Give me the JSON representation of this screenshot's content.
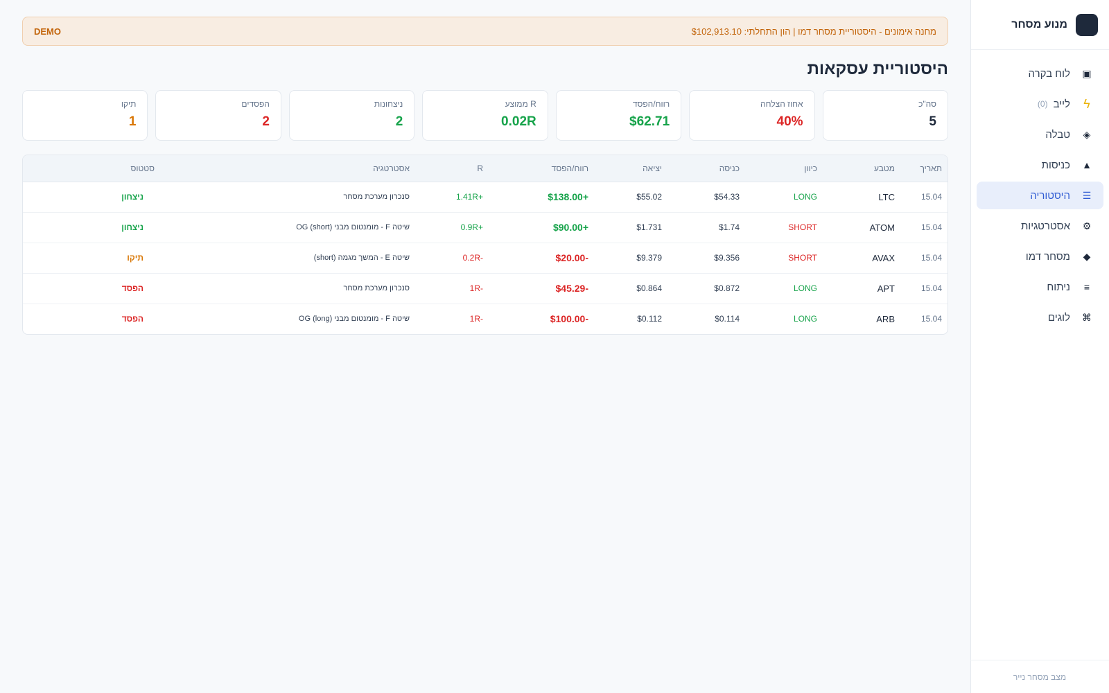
{
  "sidebar": {
    "brand": "מנוע מסחר",
    "items": [
      {
        "label": "לוח בקרה",
        "icon": "▣",
        "icon_name": "dashboard-icon"
      },
      {
        "label": "לייב",
        "icon": "ϟ",
        "icon_name": "lightning-icon",
        "count": "(0)"
      },
      {
        "label": "טבלה",
        "icon": "◈",
        "icon_name": "table-icon"
      },
      {
        "label": "כניסות",
        "icon": "▲",
        "icon_name": "triangle-icon"
      },
      {
        "label": "היסטוריה",
        "icon": "☰",
        "icon_name": "history-icon",
        "active": true
      },
      {
        "label": "אסטרטגיות",
        "icon": "⚙",
        "icon_name": "gear-icon"
      },
      {
        "label": "מסחר דמו",
        "icon": "◆",
        "icon_name": "diamond-icon"
      },
      {
        "label": "ניתוח",
        "icon": "≡",
        "icon_name": "analysis-icon"
      },
      {
        "label": "לוגים",
        "icon": "⌘",
        "icon_name": "command-icon"
      }
    ],
    "footer": "מצב מסחר נייר"
  },
  "banner": {
    "text": "מחנה אימונים - היסטוריית מסחר דמו | הון התחלתי: $102,913.10",
    "badge": "DEMO"
  },
  "page": {
    "title": "היסטוריית עסקאות"
  },
  "stats": [
    {
      "label": "סה\"כ",
      "value": "5",
      "color": "dark"
    },
    {
      "label": "אחוז הצלחה",
      "value": "40%",
      "color": "red"
    },
    {
      "label": "רווח/הפסד",
      "value": "$62.71",
      "color": "green"
    },
    {
      "label": "R ממוצע",
      "value": "0.02R",
      "color": "green"
    },
    {
      "label": "ניצחונות",
      "value": "2",
      "color": "green"
    },
    {
      "label": "הפסדים",
      "value": "2",
      "color": "red"
    },
    {
      "label": "תיקו",
      "value": "1",
      "color": "orange"
    }
  ],
  "table": {
    "headers": {
      "date": "תאריך",
      "coin": "מטבע",
      "direction": "כיוון",
      "entry": "כניסה",
      "exit": "יציאה",
      "pnl": "רווח/הפסד",
      "r": "R",
      "strategy": "אסטרטגיה",
      "status": "סטטוס"
    },
    "rows": [
      {
        "date": "15.04",
        "coin": "LTC",
        "direction": "LONG",
        "entry": "$54.33",
        "exit": "$55.02",
        "pnl": "+$138.00",
        "r": "+1.41R",
        "strategy": "סנכרון מערכת מסחר",
        "status": "ניצחון",
        "outcome": "win"
      },
      {
        "date": "15.04",
        "coin": "ATOM",
        "direction": "SHORT",
        "entry": "$1.74",
        "exit": "$1.731",
        "pnl": "+$90.00",
        "r": "+0.9R",
        "strategy": "שיטה F - מומנטום מבני (short) OG",
        "status": "ניצחון",
        "outcome": "win"
      },
      {
        "date": "15.04",
        "coin": "AVAX",
        "direction": "SHORT",
        "entry": "$9.356",
        "exit": "$9.379",
        "pnl": "-$20.00",
        "r": "-0.2R",
        "strategy": "שיטה E - המשך מגמה (short)",
        "status": "תיקו",
        "outcome": "draw"
      },
      {
        "date": "15.04",
        "coin": "APT",
        "direction": "LONG",
        "entry": "$0.872",
        "exit": "$0.864",
        "pnl": "-$45.29",
        "r": "-1R",
        "strategy": "סנכרון מערכת מסחר",
        "status": "הפסד",
        "outcome": "loss"
      },
      {
        "date": "15.04",
        "coin": "ARB",
        "direction": "LONG",
        "entry": "$0.114",
        "exit": "$0.112",
        "pnl": "-$100.00",
        "r": "-1R",
        "strategy": "שיטה F - מומנטום מבני (long) OG",
        "status": "הפסד",
        "outcome": "loss"
      }
    ]
  }
}
